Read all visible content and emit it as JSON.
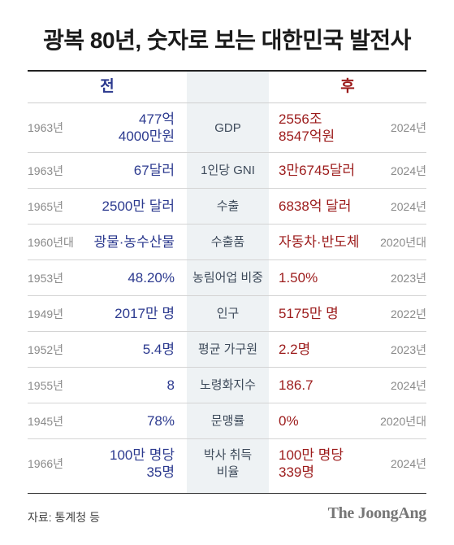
{
  "title": "광복 80년, 숫자로 보는 대한민국 발전사",
  "header": {
    "before": "전",
    "after": "후"
  },
  "rows": [
    {
      "year_before": "1963년",
      "before": [
        "477억",
        "4000만원"
      ],
      "label": [
        "GDP"
      ],
      "after": [
        "2556조",
        "8547억원"
      ],
      "year_after": "2024년"
    },
    {
      "year_before": "1963년",
      "before": [
        "67달러"
      ],
      "label": [
        "1인당 GNI"
      ],
      "after": [
        "3만6745달러"
      ],
      "year_after": "2024년"
    },
    {
      "year_before": "1965년",
      "before": [
        "2500만 달러"
      ],
      "label": [
        "수출"
      ],
      "after": [
        "6838억 달러"
      ],
      "year_after": "2024년"
    },
    {
      "year_before": "1960년대",
      "before": [
        "광물·농수산물"
      ],
      "label": [
        "수출품"
      ],
      "after": [
        "자동차·반도체"
      ],
      "year_after": "2020년대"
    },
    {
      "year_before": "1953년",
      "before": [
        "48.20%"
      ],
      "label": [
        "농림어업 비중"
      ],
      "after": [
        "1.50%"
      ],
      "year_after": "2023년"
    },
    {
      "year_before": "1949년",
      "before": [
        "2017만 명"
      ],
      "label": [
        "인구"
      ],
      "after": [
        "5175만 명"
      ],
      "year_after": "2022년"
    },
    {
      "year_before": "1952년",
      "before": [
        "5.4명"
      ],
      "label": [
        "평균 가구원"
      ],
      "after": [
        "2.2명"
      ],
      "year_after": "2023년"
    },
    {
      "year_before": "1955년",
      "before": [
        "8"
      ],
      "label": [
        "노령화지수"
      ],
      "after": [
        "186.7"
      ],
      "year_after": "2024년"
    },
    {
      "year_before": "1945년",
      "before": [
        "78%"
      ],
      "label": [
        "문맹률"
      ],
      "after": [
        "0%"
      ],
      "year_after": "2020년대"
    },
    {
      "year_before": "1966년",
      "before": [
        "100만 명당",
        "35명"
      ],
      "label": [
        "박사 취득",
        "비율"
      ],
      "after": [
        "100만 명당",
        "339명"
      ],
      "year_after": "2024년"
    }
  ],
  "source": "자료: 통계청 등",
  "logo": "The JoongAng",
  "colors": {
    "before": "#2c3a8f",
    "after": "#9c1b1b",
    "mid_column": "#eef2f4"
  }
}
